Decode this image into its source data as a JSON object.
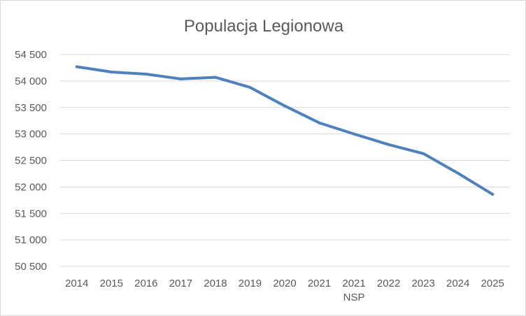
{
  "chart_data": {
    "type": "line",
    "title": "Populacja Legionowa",
    "xlabel": "",
    "ylabel": "",
    "categories": [
      [
        "2014"
      ],
      [
        "2015"
      ],
      [
        "2016"
      ],
      [
        "2017"
      ],
      [
        "2018"
      ],
      [
        "2019"
      ],
      [
        "2020"
      ],
      [
        "2021"
      ],
      [
        "2021",
        "NSP"
      ],
      [
        "2022"
      ],
      [
        "2023"
      ],
      [
        "2024"
      ],
      [
        "2025"
      ]
    ],
    "series": [
      {
        "values": [
          54270,
          54170,
          54130,
          54040,
          54070,
          53880,
          53530,
          53210,
          53000,
          52800,
          52630,
          52260,
          51860
        ],
        "color": "#4f81bd"
      }
    ],
    "y_ticks": [
      "50 500",
      "51 000",
      "51 500",
      "52 000",
      "52 500",
      "53 000",
      "53 500",
      "54 000",
      "54 500"
    ],
    "ylim": [
      50500,
      54500
    ],
    "grid": true,
    "legend": "none",
    "colors": {
      "grid": "#d9d9d9",
      "text": "#595959",
      "border": "#d9d9d9"
    }
  }
}
